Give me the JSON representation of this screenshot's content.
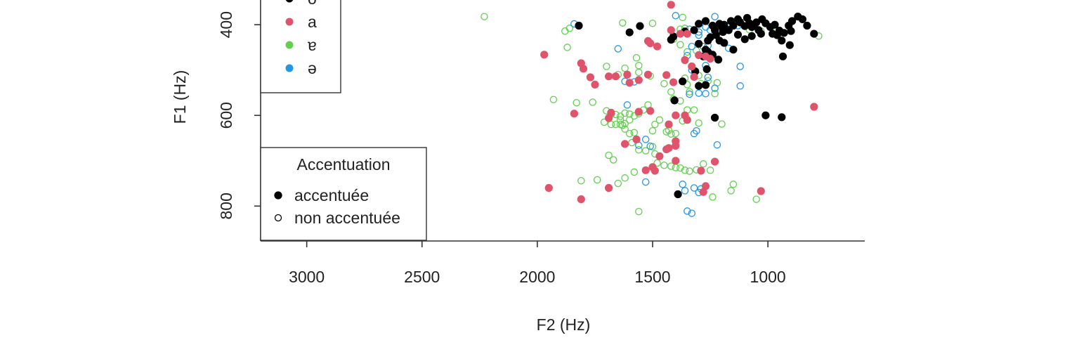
{
  "chart_data": {
    "type": "scatter",
    "xlabel": "F2 (Hz)",
    "ylabel": "F1 (Hz)",
    "x_reversed": true,
    "y_reversed": true,
    "xlim": [
      3200,
      580
    ],
    "ylim": [
      330,
      877
    ],
    "xticks": [
      3000,
      2500,
      2000,
      1500,
      1000
    ],
    "yticks": [
      400,
      600,
      800
    ],
    "grid": false,
    "colors": {
      "o": "#000000",
      "a": "#df536b",
      "ɐ": "#61d04f",
      "ə": "#2297e6"
    },
    "legend_vowel": {
      "placement": "top-left",
      "entries": [
        {
          "label": "o",
          "color": "#000000"
        },
        {
          "label": "a",
          "color": "#df536b"
        },
        {
          "label": "ɐ",
          "color": "#61d04f"
        },
        {
          "label": "ə",
          "color": "#2297e6"
        }
      ]
    },
    "legend_accent": {
      "placement": "bottom-left",
      "title": "Accentuation",
      "entries": [
        {
          "label": "accentuée",
          "marker": "filled-circle"
        },
        {
          "label": "non accentuée",
          "marker": "open-circle"
        }
      ]
    },
    "series": [
      {
        "vowel": "o",
        "accent": "accentuée",
        "points": [
          [
            1820,
            402
          ],
          [
            1555,
            403
          ],
          [
            1600,
            417
          ],
          [
            1360,
            415
          ],
          [
            1410,
            426
          ],
          [
            1300,
            442
          ],
          [
            1260,
            435
          ],
          [
            1225,
            423
          ],
          [
            1195,
            416
          ],
          [
            1170,
            412
          ],
          [
            1150,
            402
          ],
          [
            1120,
            395
          ],
          [
            1100,
            403
          ],
          [
            1080,
            397
          ],
          [
            1060,
            403
          ],
          [
            1040,
            412
          ],
          [
            1010,
            397
          ],
          [
            990,
            405
          ],
          [
            970,
            400
          ],
          [
            950,
            413
          ],
          [
            930,
            418
          ],
          [
            910,
            402
          ],
          [
            895,
            392
          ],
          [
            870,
            382
          ],
          [
            850,
            388
          ],
          [
            830,
            402
          ],
          [
            800,
            420
          ],
          [
            900,
            414
          ],
          [
            1025,
            388
          ],
          [
            1050,
            395
          ],
          [
            1090,
            385
          ],
          [
            1130,
            388
          ],
          [
            1160,
            392
          ],
          [
            1190,
            400
          ],
          [
            1210,
            398
          ],
          [
            1240,
            402
          ],
          [
            1270,
            392
          ],
          [
            1300,
            398
          ],
          [
            1320,
            412
          ],
          [
            1230,
            412
          ],
          [
            1250,
            428
          ],
          [
            1210,
            435
          ],
          [
            1190,
            440
          ],
          [
            1150,
            455
          ],
          [
            1100,
            432
          ],
          [
            1070,
            425
          ],
          [
            1030,
            420
          ],
          [
            980,
            420
          ],
          [
            960,
            423
          ],
          [
            940,
            435
          ],
          [
            905,
            445
          ],
          [
            935,
            470
          ],
          [
            1270,
            455
          ],
          [
            1260,
            460
          ],
          [
            1240,
            466
          ],
          [
            1280,
            470
          ],
          [
            1215,
            477
          ],
          [
            1315,
            503
          ],
          [
            1265,
            498
          ],
          [
            1300,
            535
          ],
          [
            1270,
            533
          ],
          [
            1370,
            525
          ],
          [
            1405,
            567
          ],
          [
            1230,
            605
          ],
          [
            1010,
            600
          ],
          [
            940,
            604
          ],
          [
            1390,
            774
          ],
          [
            1420,
            433
          ],
          [
            1130,
            422
          ],
          [
            1070,
            405
          ],
          [
            1200,
            405
          ]
        ]
      },
      {
        "vowel": "a",
        "accent": "accentuée",
        "points": [
          [
            1520,
            436
          ],
          [
            1510,
            441
          ],
          [
            1480,
            448
          ],
          [
            1420,
            412
          ],
          [
            1420,
            356
          ],
          [
            1380,
            420
          ],
          [
            1350,
            420
          ],
          [
            1300,
            467
          ],
          [
            1270,
            470
          ],
          [
            1250,
            475
          ],
          [
            1970,
            466
          ],
          [
            1810,
            485
          ],
          [
            1800,
            497
          ],
          [
            1770,
            516
          ],
          [
            1690,
            514
          ],
          [
            1660,
            514
          ],
          [
            1610,
            510
          ],
          [
            1600,
            528
          ],
          [
            1750,
            532
          ],
          [
            1560,
            522
          ],
          [
            1520,
            510
          ],
          [
            1440,
            511
          ],
          [
            1410,
            527
          ],
          [
            1360,
            478
          ],
          [
            1330,
            492
          ],
          [
            1320,
            515
          ],
          [
            1840,
            596
          ],
          [
            1680,
            594
          ],
          [
            1690,
            606
          ],
          [
            1560,
            592
          ],
          [
            1510,
            590
          ],
          [
            1400,
            600
          ],
          [
            1360,
            600
          ],
          [
            1350,
            610
          ],
          [
            1430,
            620
          ],
          [
            1400,
            657
          ],
          [
            1400,
            667
          ],
          [
            1430,
            672
          ],
          [
            1440,
            675
          ],
          [
            1470,
            690
          ],
          [
            1400,
            700
          ],
          [
            1500,
            714
          ],
          [
            1530,
            721
          ],
          [
            1490,
            722
          ],
          [
            1230,
            702
          ],
          [
            1290,
            722
          ],
          [
            1270,
            756
          ],
          [
            1280,
            769
          ],
          [
            1030,
            767
          ],
          [
            1950,
            760
          ],
          [
            1690,
            760
          ],
          [
            1810,
            785
          ],
          [
            800,
            581
          ],
          [
            1620,
            663
          ],
          [
            1570,
            653
          ]
        ]
      },
      {
        "vowel": "ɐ",
        "accent": "non accentuée",
        "points": [
          [
            2230,
            382
          ],
          [
            1630,
            396
          ],
          [
            1500,
            397
          ],
          [
            1370,
            384
          ],
          [
            1380,
            410
          ],
          [
            1360,
            408
          ],
          [
            1880,
            414
          ],
          [
            1860,
            408
          ],
          [
            1870,
            450
          ],
          [
            780,
            425
          ],
          [
            1410,
            432
          ],
          [
            1380,
            444
          ],
          [
            1350,
            460
          ],
          [
            1310,
            457
          ],
          [
            1100,
            432
          ],
          [
            1080,
            411
          ],
          [
            1030,
            414
          ],
          [
            960,
            412
          ],
          [
            1570,
            473
          ],
          [
            1560,
            490
          ],
          [
            1560,
            505
          ],
          [
            1620,
            496
          ],
          [
            1650,
            510
          ],
          [
            1700,
            492
          ],
          [
            1510,
            513
          ],
          [
            1450,
            530
          ],
          [
            1420,
            548
          ],
          [
            1410,
            564
          ],
          [
            1380,
            568
          ],
          [
            1360,
            518
          ],
          [
            1350,
            532
          ],
          [
            1340,
            548
          ],
          [
            1300,
            512
          ],
          [
            1290,
            530
          ],
          [
            1260,
            524
          ],
          [
            1220,
            528
          ],
          [
            1230,
            552
          ],
          [
            1930,
            565
          ],
          [
            1830,
            572
          ],
          [
            1760,
            571
          ],
          [
            1700,
            590
          ],
          [
            1680,
            598
          ],
          [
            1660,
            598
          ],
          [
            1640,
            602
          ],
          [
            1620,
            595
          ],
          [
            1600,
            597
          ],
          [
            1580,
            601
          ],
          [
            1560,
            596
          ],
          [
            1540,
            588
          ],
          [
            1520,
            577
          ],
          [
            1620,
            618
          ],
          [
            1600,
            610
          ],
          [
            1640,
            610
          ],
          [
            1660,
            620
          ],
          [
            1680,
            620
          ],
          [
            1710,
            615
          ],
          [
            1640,
            620
          ],
          [
            1630,
            622
          ],
          [
            1620,
            630
          ],
          [
            1580,
            638
          ],
          [
            1600,
            640
          ],
          [
            1470,
            610
          ],
          [
            1490,
            620
          ],
          [
            1500,
            634
          ],
          [
            1440,
            636
          ],
          [
            1430,
            633
          ],
          [
            1420,
            641
          ],
          [
            1400,
            640
          ],
          [
            1370,
            612
          ],
          [
            1350,
            588
          ],
          [
            1320,
            588
          ],
          [
            1300,
            617
          ],
          [
            1200,
            619
          ],
          [
            1590,
            660
          ],
          [
            1560,
            676
          ],
          [
            1530,
            678
          ],
          [
            1500,
            669
          ],
          [
            1490,
            685
          ],
          [
            1480,
            705
          ],
          [
            1450,
            710
          ],
          [
            1420,
            712
          ],
          [
            1400,
            715
          ],
          [
            1380,
            716
          ],
          [
            1360,
            721
          ],
          [
            1340,
            723
          ],
          [
            1310,
            720
          ],
          [
            1280,
            707
          ],
          [
            1250,
            721
          ],
          [
            1690,
            688
          ],
          [
            1670,
            698
          ],
          [
            1580,
            725
          ],
          [
            1620,
            738
          ],
          [
            1650,
            750
          ],
          [
            1740,
            742
          ],
          [
            1810,
            744
          ],
          [
            1560,
            812
          ],
          [
            1240,
            780
          ],
          [
            1160,
            766
          ],
          [
            1050,
            785
          ],
          [
            1150,
            752
          ]
        ]
      },
      {
        "vowel": "ə",
        "accent": "non accentuée",
        "points": [
          [
            1400,
            380
          ],
          [
            1230,
            382
          ],
          [
            1340,
            410
          ],
          [
            1300,
            416
          ],
          [
            1270,
            405
          ],
          [
            1250,
            412
          ],
          [
            1190,
            400
          ],
          [
            1170,
            410
          ],
          [
            1130,
            402
          ],
          [
            1300,
            423
          ],
          [
            1260,
            446
          ],
          [
            1170,
            452
          ],
          [
            1120,
            492
          ],
          [
            1120,
            535
          ],
          [
            1330,
            500
          ],
          [
            1350,
            468
          ],
          [
            1330,
            448
          ],
          [
            1280,
            448
          ],
          [
            1270,
            490
          ],
          [
            1260,
            516
          ],
          [
            1340,
            553
          ],
          [
            1300,
            551
          ],
          [
            1270,
            552
          ],
          [
            1230,
            540
          ],
          [
            1650,
            453
          ],
          [
            1610,
            510
          ],
          [
            1620,
            525
          ],
          [
            1580,
            526
          ],
          [
            1610,
            577
          ],
          [
            1560,
            666
          ],
          [
            1530,
            653
          ],
          [
            1510,
            668
          ],
          [
            1320,
            640
          ],
          [
            1310,
            634
          ],
          [
            1220,
            665
          ],
          [
            1530,
            747
          ],
          [
            1370,
            752
          ],
          [
            1360,
            766
          ],
          [
            1320,
            760
          ],
          [
            1290,
            762
          ],
          [
            1300,
            770
          ],
          [
            1350,
            811
          ],
          [
            1330,
            816
          ],
          [
            1840,
            398
          ],
          [
            1100,
            394
          ]
        ]
      }
    ]
  }
}
